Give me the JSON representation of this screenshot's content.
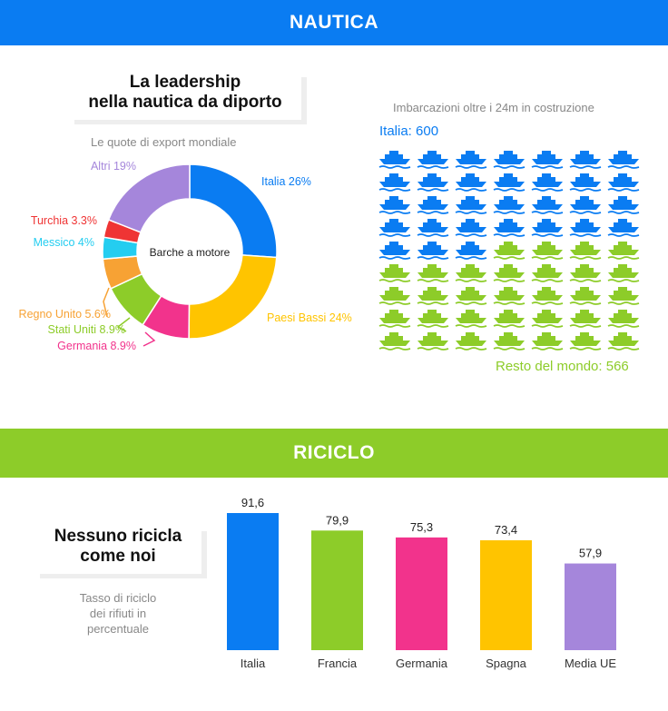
{
  "nautica": {
    "band_title": "NAUTICA",
    "heading": [
      "La leadership",
      "nella nautica da diporto"
    ],
    "subtitle": "Le quote di export mondiale",
    "center_label": "Barche a motore",
    "ships_title": "Imbarcazioni oltre i 24m in costruzione",
    "ships_top_label": "Italia: 600",
    "ships_bottom_label": "Resto del mondo: 566"
  },
  "riciclo": {
    "band_title": "RICICLO",
    "heading": [
      "Nessuno ricicla",
      "come noi"
    ],
    "subtitle": [
      "Tasso di riciclo",
      "dei rifiuti in",
      "percentuale"
    ]
  },
  "colors": {
    "blue": "#0a7cf2",
    "green": "#8dcc29",
    "yellow": "#ffc400",
    "pink": "#f2338c",
    "purple": "#a586db",
    "orange": "#f7a234",
    "cyan": "#24cdf0",
    "red": "#ef3434"
  },
  "chart_data": [
    {
      "type": "pie",
      "title": "Le quote di export mondiale",
      "center_label": "Barche a motore",
      "slices": [
        {
          "label": "Italia 26%",
          "value": 26,
          "color": "#0a7cf2"
        },
        {
          "label": "Paesi Bassi 24%",
          "value": 24,
          "color": "#ffc400"
        },
        {
          "label": "Germania 8.9%",
          "value": 8.9,
          "color": "#f2338c"
        },
        {
          "label": "Stati Uniti 8.9%",
          "value": 8.9,
          "color": "#8dcc29"
        },
        {
          "label": "Regno Unito 5.6%",
          "value": 5.6,
          "color": "#f7a234"
        },
        {
          "label": "Messico 4%",
          "value": 4,
          "color": "#24cdf0"
        },
        {
          "label": "Turchia 3.3%",
          "value": 3.3,
          "color": "#ef3434"
        },
        {
          "label": "Altri 19%",
          "value": 19,
          "color": "#a586db"
        }
      ]
    },
    {
      "type": "pictogram",
      "title": "Imbarcazioni oltre i 24m in costruzione",
      "series": [
        {
          "name": "Italia",
          "value": 600,
          "color": "#0a7cf2"
        },
        {
          "name": "Resto del mondo",
          "value": 566,
          "color": "#8dcc29"
        }
      ]
    },
    {
      "type": "bar",
      "categories": [
        "Italia",
        "Francia",
        "Germania",
        "Spagna",
        "Media UE"
      ],
      "values": [
        91.6,
        79.9,
        75.3,
        73.4,
        57.9
      ],
      "value_labels": [
        "91,6",
        "79,9",
        "75,3",
        "73,4",
        "57,9"
      ],
      "colors": [
        "#0a7cf2",
        "#8dcc29",
        "#f2338c",
        "#ffc400",
        "#a586db"
      ],
      "ylim": [
        0,
        100
      ]
    }
  ]
}
